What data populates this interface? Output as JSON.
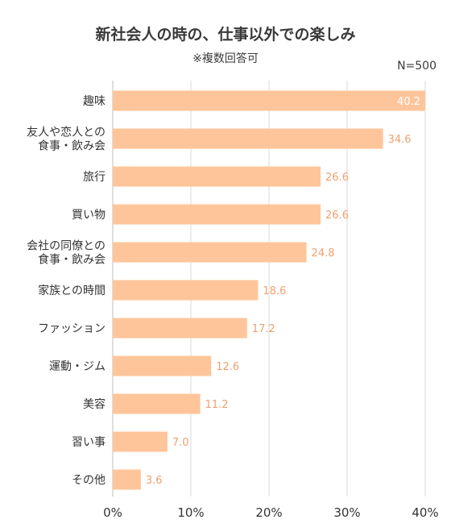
{
  "title": "新社会人の時の、仕事以外での楽しみ",
  "subtitle": "※複数回答可",
  "sample_size": "N=500",
  "colors": {
    "bar": "#ffc59a",
    "value_label": "#f0a070",
    "value_label_inside": "#ffffff",
    "grid": "#d9d9d9",
    "text": "#333333"
  },
  "chart_data": {
    "type": "bar",
    "orientation": "horizontal",
    "categories": [
      [
        "趣味"
      ],
      [
        "友人や恋人との",
        "食事・飲み会"
      ],
      [
        "旅行"
      ],
      [
        "買い物"
      ],
      [
        "会社の同僚との",
        "食事・飲み会"
      ],
      [
        "家族との時間"
      ],
      [
        "ファッション"
      ],
      [
        "運動・ジム"
      ],
      [
        "美容"
      ],
      [
        "習い事"
      ],
      [
        "その他"
      ]
    ],
    "values": [
      40.2,
      34.6,
      26.6,
      26.6,
      24.8,
      18.6,
      17.2,
      12.6,
      11.2,
      7.0,
      3.6
    ],
    "value_labels": [
      "40.2",
      "34.6",
      "26.6",
      "26.6",
      "24.8",
      "18.6",
      "17.2",
      "12.6",
      "11.2",
      "7.0",
      "3.6"
    ],
    "xlim": [
      0,
      40
    ],
    "xticks": [
      0,
      10,
      20,
      30,
      40
    ],
    "xtick_labels": [
      "0%",
      "10%",
      "20%",
      "30%",
      "40%"
    ],
    "grid": true
  }
}
